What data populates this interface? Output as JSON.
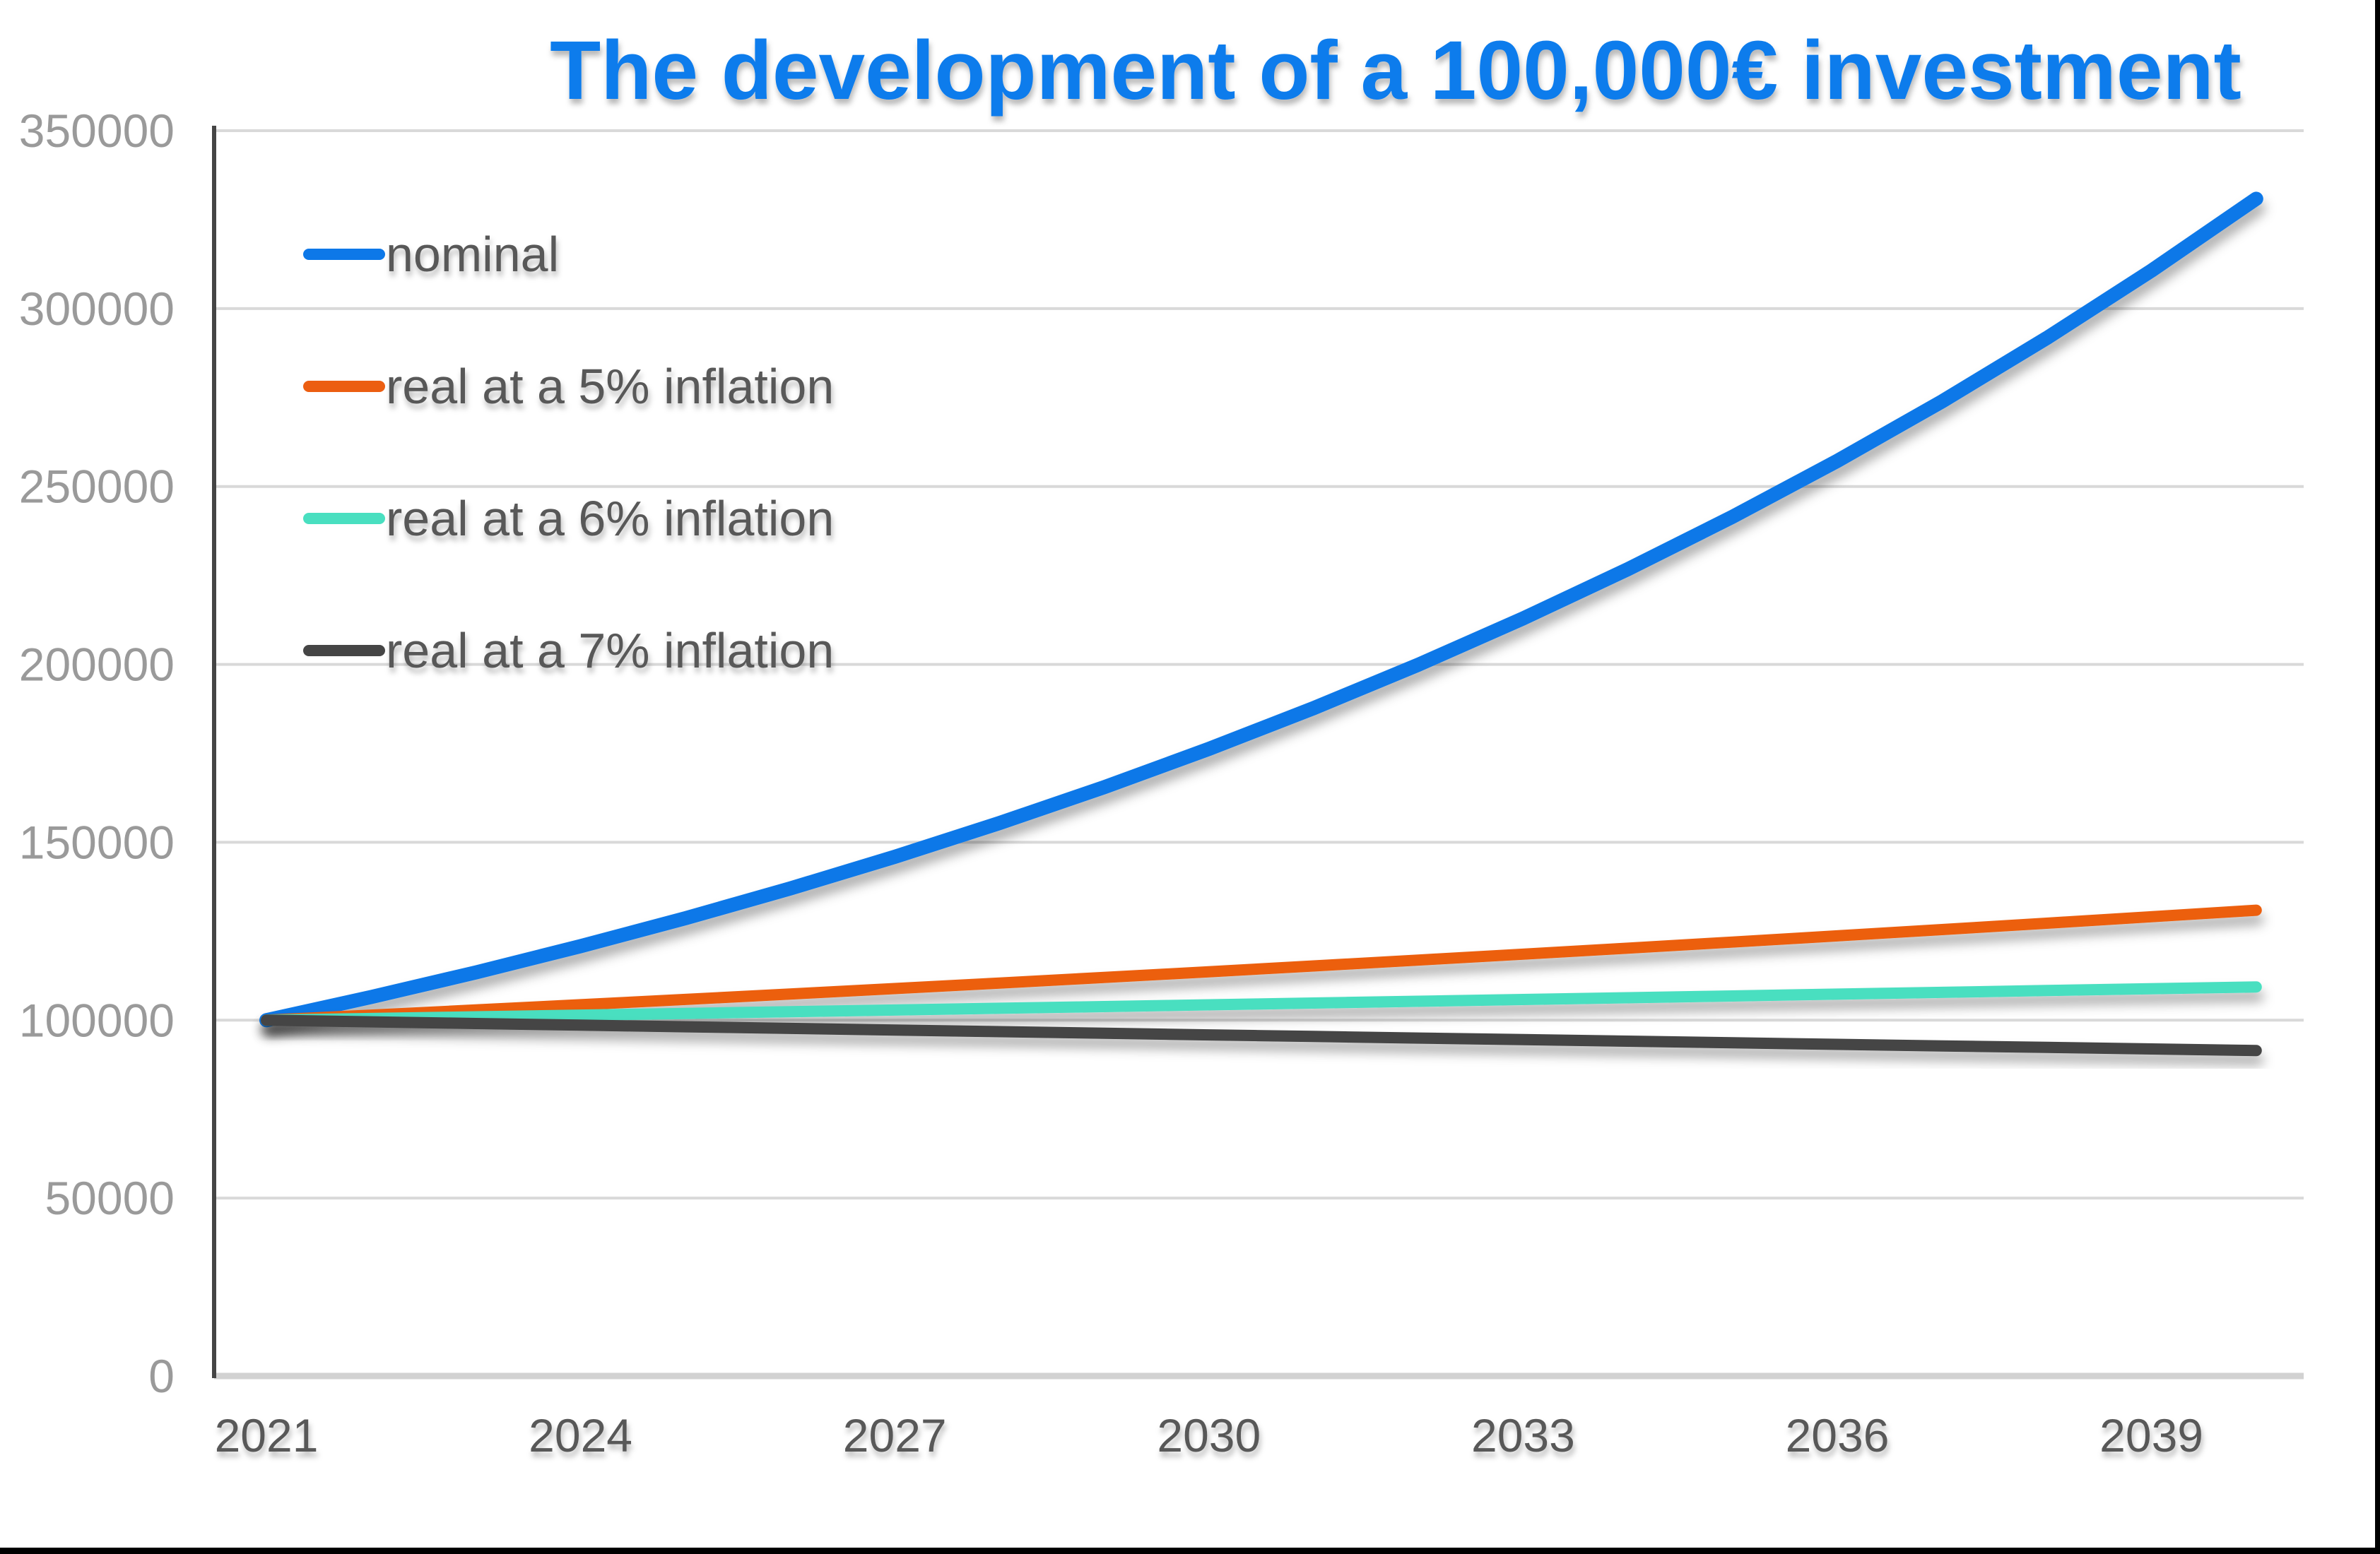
{
  "window": {
    "edge_color": "#000000",
    "background": "#ffffff"
  },
  "chart_data": {
    "type": "line",
    "title": "The development of a 100,000€ investment",
    "title_color": "#0c7cec",
    "xlabel": "",
    "ylabel": "",
    "x": [
      2021,
      2022,
      2023,
      2024,
      2025,
      2026,
      2027,
      2028,
      2029,
      2030,
      2031,
      2032,
      2033,
      2034,
      2035,
      2036,
      2037,
      2038,
      2039,
      2040
    ],
    "x_tick_labels": [
      "2021",
      "2024",
      "2027",
      "2030",
      "2033",
      "2036",
      "2039"
    ],
    "y_ticks": [
      0,
      50000,
      100000,
      150000,
      200000,
      250000,
      300000,
      350000
    ],
    "y_tick_labels": [
      "0",
      "50000",
      "100000",
      "150000",
      "200000",
      "250000",
      "300000",
      "350000"
    ],
    "ylim": [
      0,
      350000
    ],
    "grid": "horizontal",
    "legend_position": "top-left-inside",
    "series": [
      {
        "name": "nominal",
        "color": "#0d78e8",
        "values": [
          100000,
          106500,
          113423,
          120795,
          128647,
          137009,
          145914,
          155399,
          165500,
          176257,
          187714,
          199915,
          212910,
          226749,
          241487,
          257184,
          273901,
          291705,
          310665,
          330859
        ]
      },
      {
        "name": "real at a 5% inflation",
        "color": "#ec5e11",
        "values": [
          100000,
          101429,
          102878,
          104347,
          105838,
          107350,
          108883,
          110438,
          112015,
          113615,
          115237,
          116882,
          118551,
          120243,
          121960,
          123700,
          125466,
          127256,
          129072,
          130914
        ]
      },
      {
        "name": "real at a 6% inflation",
        "color": "#49dfc0",
        "values": [
          100000,
          100472,
          100946,
          101422,
          101900,
          102381,
          102864,
          103349,
          103837,
          104326,
          104819,
          105313,
          105810,
          106309,
          106811,
          107315,
          107821,
          108330,
          108841,
          109354
        ]
      },
      {
        "name": "real at a 7% inflation",
        "color": "#454545",
        "values": [
          100000,
          99533,
          99068,
          98605,
          98144,
          97685,
          97229,
          96774,
          96322,
          95872,
          95424,
          94978,
          94534,
          94093,
          93653,
          93215,
          92780,
          92346,
          91915,
          91485
        ]
      }
    ],
    "style_colors": {
      "y_tick_label": "#9a9a9a",
      "x_tick_label": "#595959",
      "legend_text": "#595959",
      "gridline": "#d9d9d9",
      "baseline": "#d2d2d2",
      "axis_line": "#454545"
    }
  }
}
